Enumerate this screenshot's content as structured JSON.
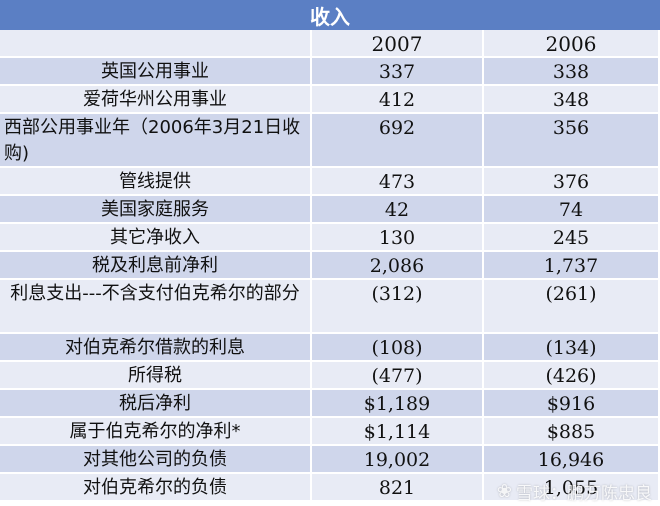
{
  "title": "收入",
  "header": {
    "col0": "",
    "col1": "2007",
    "col2": "2006"
  },
  "rows": [
    {
      "label": "英国公用事业",
      "v2007": "337",
      "v2006": "338"
    },
    {
      "label": "爱荷华州公用事业",
      "v2007": "412",
      "v2006": "348"
    },
    {
      "label": "西部公用事业年（2006年3月21日收购)",
      "v2007": "692",
      "v2006": "356"
    },
    {
      "label": "管线提供",
      "v2007": "473",
      "v2006": "376"
    },
    {
      "label": "美国家庭服务",
      "v2007": "42",
      "v2006": "74"
    },
    {
      "label": "其它净收入",
      "v2007": "130",
      "v2006": "245"
    },
    {
      "label": "税及利息前净利",
      "v2007": "2,086",
      "v2006": "1,737"
    },
    {
      "label": "利息支出---不含支付伯克希尔的部分",
      "v2007": "(312)",
      "v2006": "(261)"
    },
    {
      "label": "对伯克希尔借款的利息",
      "v2007": "(108)",
      "v2006": "(134)"
    },
    {
      "label": "所得税",
      "v2007": "(477)",
      "v2006": "(426)"
    },
    {
      "label": "税后净利",
      "v2007": "$1,189",
      "v2006": "$916"
    },
    {
      "label": "属于伯克希尔的净利*",
      "v2007": "$1,114",
      "v2006": "$885"
    },
    {
      "label": "对其他公司的负债",
      "v2007": "19,002",
      "v2006": "16,946"
    },
    {
      "label": "对伯克希尔的负债",
      "v2007": "821",
      "v2006": "1,055"
    }
  ],
  "watermark": {
    "logo": "❀",
    "text": "雪球：鹏万陈忠良"
  },
  "colors": {
    "title_bg": "#5b7fc4",
    "row_dark": "#cfd6eb",
    "row_light": "#e8ebf5"
  }
}
